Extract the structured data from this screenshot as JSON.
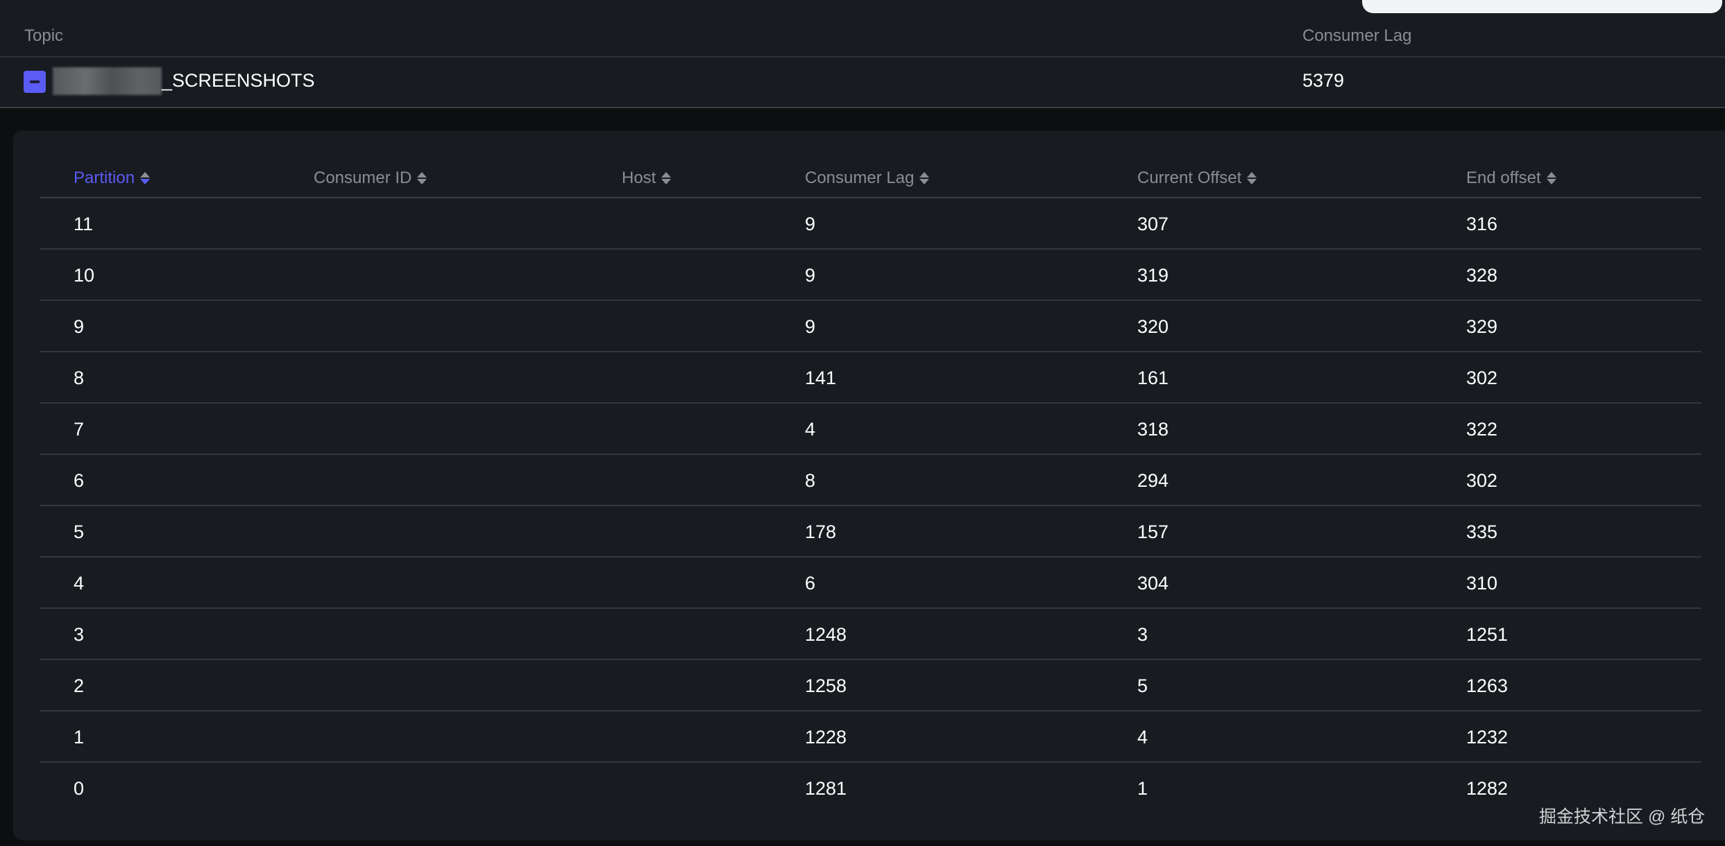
{
  "topic_table": {
    "headers": {
      "topic": "Topic",
      "consumer_lag": "Consumer Lag"
    },
    "row": {
      "topic_suffix": "_SCREENSHOTS",
      "consumer_lag": "5379",
      "expanded": true
    }
  },
  "partition_table": {
    "headers": [
      "Partition",
      "Consumer ID",
      "Host",
      "Consumer Lag",
      "Current Offset",
      "End offset"
    ],
    "active_sort": "Partition",
    "rows": [
      [
        "11",
        "",
        "",
        "9",
        "307",
        "316"
      ],
      [
        "10",
        "",
        "",
        "9",
        "319",
        "328"
      ],
      [
        "9",
        "",
        "",
        "9",
        "320",
        "329"
      ],
      [
        "8",
        "",
        "",
        "141",
        "161",
        "302"
      ],
      [
        "7",
        "",
        "",
        "4",
        "318",
        "322"
      ],
      [
        "6",
        "",
        "",
        "8",
        "294",
        "302"
      ],
      [
        "5",
        "",
        "",
        "178",
        "157",
        "335"
      ],
      [
        "4",
        "",
        "",
        "6",
        "304",
        "310"
      ],
      [
        "3",
        "",
        "",
        "1248",
        "3",
        "1251"
      ],
      [
        "2",
        "",
        "",
        "1258",
        "5",
        "1263"
      ],
      [
        "1",
        "",
        "",
        "1228",
        "4",
        "1232"
      ],
      [
        "0",
        "",
        "",
        "1281",
        "1",
        "1282"
      ]
    ]
  },
  "watermark": "掘金技术社区 @ 纸仓",
  "colors": {
    "accent": "#5b5bf5",
    "background": "#181b20"
  }
}
